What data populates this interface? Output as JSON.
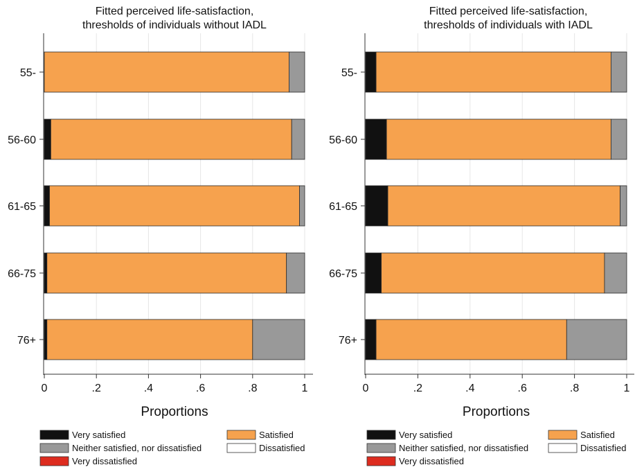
{
  "chart_data": [
    {
      "type": "bar",
      "orientation": "horizontal",
      "stacked": true,
      "title_lines": [
        "Fitted perceived life-satisfaction,",
        "thresholds of individuals without IADL"
      ],
      "xlabel": "Proportions",
      "xlim": [
        0,
        1
      ],
      "xticks": [
        "0",
        ".2",
        ".4",
        ".6",
        ".8",
        "1"
      ],
      "xtick_values": [
        0,
        0.2,
        0.4,
        0.6,
        0.8,
        1
      ],
      "grid": true,
      "categories": [
        "55-",
        "56-60",
        "61-65",
        "66-75",
        "76+"
      ],
      "series": [
        {
          "name": "Very satisfied",
          "color": "#111111",
          "values": [
            0.0,
            0.025,
            0.02,
            0.01,
            0.01
          ]
        },
        {
          "name": "Satisfied",
          "color": "#f6a24e",
          "values": [
            0.94,
            0.925,
            0.96,
            0.92,
            0.79
          ]
        },
        {
          "name": "Neither satisfied, nor dissatisfied",
          "color": "#999999",
          "values": [
            0.06,
            0.05,
            0.02,
            0.07,
            0.2
          ]
        },
        {
          "name": "Dissatisfied",
          "color": "#ffffff",
          "values": [
            0,
            0,
            0,
            0,
            0
          ]
        },
        {
          "name": "Very dissatisfied",
          "color": "#dd2c1f",
          "values": [
            0,
            0,
            0,
            0,
            0
          ]
        }
      ],
      "legend_position": "bottom"
    },
    {
      "type": "bar",
      "orientation": "horizontal",
      "stacked": true,
      "title_lines": [
        "Fitted perceived life-satisfaction,",
        "thresholds of individuals with IADL"
      ],
      "xlabel": "Proportions",
      "xlim": [
        0,
        1
      ],
      "xticks": [
        "0",
        ".2",
        ".4",
        ".6",
        ".8",
        "1"
      ],
      "xtick_values": [
        0,
        0.2,
        0.4,
        0.6,
        0.8,
        1
      ],
      "grid": true,
      "categories": [
        "55-",
        "56-60",
        "61-65",
        "66-75",
        "76+"
      ],
      "series": [
        {
          "name": "Very satisfied",
          "color": "#111111",
          "values": [
            0.04,
            0.08,
            0.085,
            0.06,
            0.04
          ]
        },
        {
          "name": "Satisfied",
          "color": "#f6a24e",
          "values": [
            0.9,
            0.86,
            0.89,
            0.855,
            0.73
          ]
        },
        {
          "name": "Neither satisfied, nor dissatisfied",
          "color": "#999999",
          "values": [
            0.06,
            0.06,
            0.025,
            0.085,
            0.23
          ]
        },
        {
          "name": "Dissatisfied",
          "color": "#ffffff",
          "values": [
            0,
            0,
            0,
            0,
            0
          ]
        },
        {
          "name": "Very dissatisfied",
          "color": "#dd2c1f",
          "values": [
            0,
            0,
            0,
            0,
            0
          ]
        }
      ],
      "legend_position": "bottom"
    }
  ]
}
